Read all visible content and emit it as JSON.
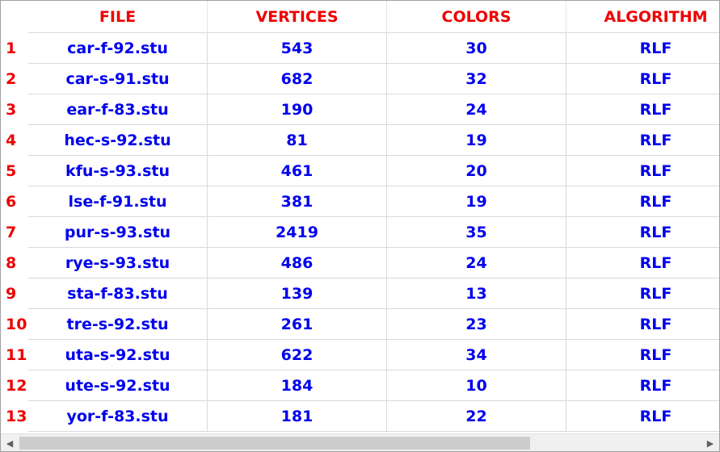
{
  "headers": {
    "file": "FILE",
    "vertices": "VERTICES",
    "colors": "COLORS",
    "algorithm": "ALGORITHM"
  },
  "rows": [
    {
      "num": "1",
      "file": "car-f-92.stu",
      "vertices": "543",
      "colors": "30",
      "algorithm": "RLF"
    },
    {
      "num": "2",
      "file": "car-s-91.stu",
      "vertices": "682",
      "colors": "32",
      "algorithm": "RLF"
    },
    {
      "num": "3",
      "file": "ear-f-83.stu",
      "vertices": "190",
      "colors": "24",
      "algorithm": "RLF"
    },
    {
      "num": "4",
      "file": "hec-s-92.stu",
      "vertices": "81",
      "colors": "19",
      "algorithm": "RLF"
    },
    {
      "num": "5",
      "file": "kfu-s-93.stu",
      "vertices": "461",
      "colors": "20",
      "algorithm": "RLF"
    },
    {
      "num": "6",
      "file": "lse-f-91.stu",
      "vertices": "381",
      "colors": "19",
      "algorithm": "RLF"
    },
    {
      "num": "7",
      "file": "pur-s-93.stu",
      "vertices": "2419",
      "colors": "35",
      "algorithm": "RLF"
    },
    {
      "num": "8",
      "file": "rye-s-93.stu",
      "vertices": "486",
      "colors": "24",
      "algorithm": "RLF"
    },
    {
      "num": "9",
      "file": "sta-f-83.stu",
      "vertices": "139",
      "colors": "13",
      "algorithm": "RLF"
    },
    {
      "num": "10",
      "file": "tre-s-92.stu",
      "vertices": "261",
      "colors": "23",
      "algorithm": "RLF"
    },
    {
      "num": "11",
      "file": "uta-s-92.stu",
      "vertices": "622",
      "colors": "34",
      "algorithm": "RLF"
    },
    {
      "num": "12",
      "file": "ute-s-92.stu",
      "vertices": "184",
      "colors": "10",
      "algorithm": "RLF"
    },
    {
      "num": "13",
      "file": "yor-f-83.stu",
      "vertices": "181",
      "colors": "22",
      "algorithm": "RLF"
    }
  ],
  "scrollbar": {
    "left_arrow_icon": "chevron-left-icon",
    "right_arrow_icon": "chevron-right-icon",
    "visible_fraction": 0.75
  },
  "colors": {
    "header_text": "#ee0000",
    "row_number_text": "#ee0000",
    "cell_text": "#0000ee",
    "grid_line": "#d9d9d9"
  }
}
